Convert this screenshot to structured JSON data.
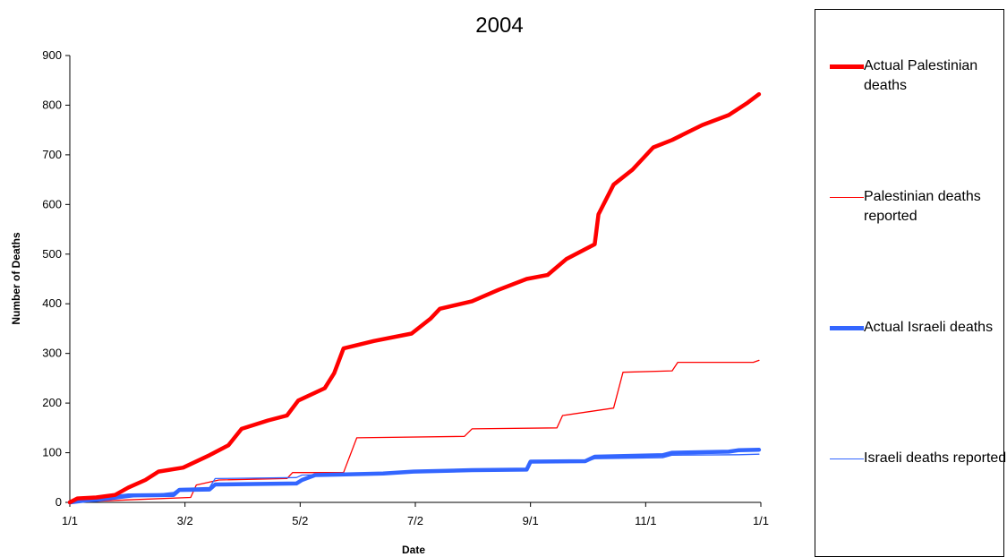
{
  "chart_data": {
    "type": "line",
    "title": "2004",
    "xlabel": "Date",
    "ylabel": "Number of Deaths",
    "ylim": [
      0,
      900
    ],
    "yticks": [
      0,
      100,
      200,
      300,
      400,
      500,
      600,
      700,
      800,
      900
    ],
    "x_tick_labels": [
      "1/1",
      "3/2",
      "5/2",
      "7/2",
      "9/1",
      "11/1",
      "1/1"
    ],
    "grid": false,
    "legend_position": "right",
    "series": [
      {
        "name": "Actual Palestinian deaths",
        "color": "#ff0000",
        "style": "thick",
        "points": [
          [
            "2004-01-01",
            0
          ],
          [
            "2004-01-05",
            8
          ],
          [
            "2004-01-15",
            10
          ],
          [
            "2004-01-25",
            15
          ],
          [
            "2004-02-01",
            30
          ],
          [
            "2004-02-10",
            45
          ],
          [
            "2004-02-17",
            62
          ],
          [
            "2004-03-01",
            70
          ],
          [
            "2004-03-15",
            95
          ],
          [
            "2004-03-25",
            115
          ],
          [
            "2004-04-01",
            148
          ],
          [
            "2004-04-15",
            165
          ],
          [
            "2004-04-25",
            175
          ],
          [
            "2004-05-01",
            205
          ],
          [
            "2004-05-15",
            230
          ],
          [
            "2004-05-20",
            260
          ],
          [
            "2004-05-25",
            310
          ],
          [
            "2004-06-10",
            325
          ],
          [
            "2004-06-30",
            340
          ],
          [
            "2004-07-10",
            370
          ],
          [
            "2004-07-15",
            390
          ],
          [
            "2004-08-01",
            405
          ],
          [
            "2004-08-15",
            428
          ],
          [
            "2004-08-30",
            450
          ],
          [
            "2004-09-10",
            458
          ],
          [
            "2004-09-20",
            490
          ],
          [
            "2004-10-05",
            520
          ],
          [
            "2004-10-07",
            580
          ],
          [
            "2004-10-15",
            640
          ],
          [
            "2004-10-25",
            670
          ],
          [
            "2004-11-05",
            715
          ],
          [
            "2004-11-15",
            730
          ],
          [
            "2004-12-01",
            760
          ],
          [
            "2004-12-15",
            780
          ],
          [
            "2004-12-25",
            805
          ],
          [
            "2004-12-31",
            822
          ]
        ]
      },
      {
        "name": "Palestinian deaths reported",
        "color": "#ff0000",
        "style": "thin",
        "points": [
          [
            "2004-01-01",
            0
          ],
          [
            "2004-02-01",
            5
          ],
          [
            "2004-03-05",
            10
          ],
          [
            "2004-03-08",
            35
          ],
          [
            "2004-03-20",
            45
          ],
          [
            "2004-04-25",
            48
          ],
          [
            "2004-04-28",
            60
          ],
          [
            "2004-05-25",
            60
          ],
          [
            "2004-06-01",
            130
          ],
          [
            "2004-07-28",
            133
          ],
          [
            "2004-08-01",
            148
          ],
          [
            "2004-09-15",
            150
          ],
          [
            "2004-09-18",
            175
          ],
          [
            "2004-10-15",
            190
          ],
          [
            "2004-10-20",
            262
          ],
          [
            "2004-11-15",
            265
          ],
          [
            "2004-11-18",
            282
          ],
          [
            "2004-12-28",
            282
          ],
          [
            "2004-12-31",
            286
          ]
        ]
      },
      {
        "name": "Actual Israeli deaths",
        "color": "#3366ff",
        "style": "thick",
        "points": [
          [
            "2004-01-01",
            0
          ],
          [
            "2004-02-01",
            14
          ],
          [
            "2004-02-25",
            15
          ],
          [
            "2004-02-28",
            25
          ],
          [
            "2004-03-15",
            26
          ],
          [
            "2004-03-18",
            36
          ],
          [
            "2004-04-30",
            38
          ],
          [
            "2004-05-03",
            45
          ],
          [
            "2004-05-10",
            55
          ],
          [
            "2004-06-15",
            58
          ],
          [
            "2004-07-01",
            62
          ],
          [
            "2004-08-01",
            65
          ],
          [
            "2004-08-30",
            66
          ],
          [
            "2004-09-01",
            82
          ],
          [
            "2004-09-30",
            83
          ],
          [
            "2004-10-05",
            92
          ],
          [
            "2004-11-10",
            95
          ],
          [
            "2004-11-15",
            100
          ],
          [
            "2004-12-15",
            102
          ],
          [
            "2004-12-20",
            105
          ],
          [
            "2004-12-31",
            106
          ]
        ]
      },
      {
        "name": "Israeli deaths reported",
        "color": "#3366ff",
        "style": "thin",
        "points": [
          [
            "2004-01-01",
            0
          ],
          [
            "2004-01-15",
            2
          ],
          [
            "2004-02-01",
            10
          ],
          [
            "2004-02-25",
            20
          ],
          [
            "2004-02-28",
            28
          ],
          [
            "2004-03-15",
            30
          ],
          [
            "2004-03-18",
            48
          ],
          [
            "2004-04-30",
            50
          ],
          [
            "2004-05-03",
            55
          ],
          [
            "2004-06-15",
            58
          ],
          [
            "2004-07-01",
            63
          ],
          [
            "2004-08-01",
            65
          ],
          [
            "2004-08-30",
            66
          ],
          [
            "2004-09-01",
            80
          ],
          [
            "2004-09-30",
            82
          ],
          [
            "2004-10-05",
            88
          ],
          [
            "2004-11-10",
            90
          ],
          [
            "2004-11-15",
            95
          ],
          [
            "2004-12-20",
            96
          ],
          [
            "2004-12-31",
            97
          ]
        ]
      }
    ]
  }
}
